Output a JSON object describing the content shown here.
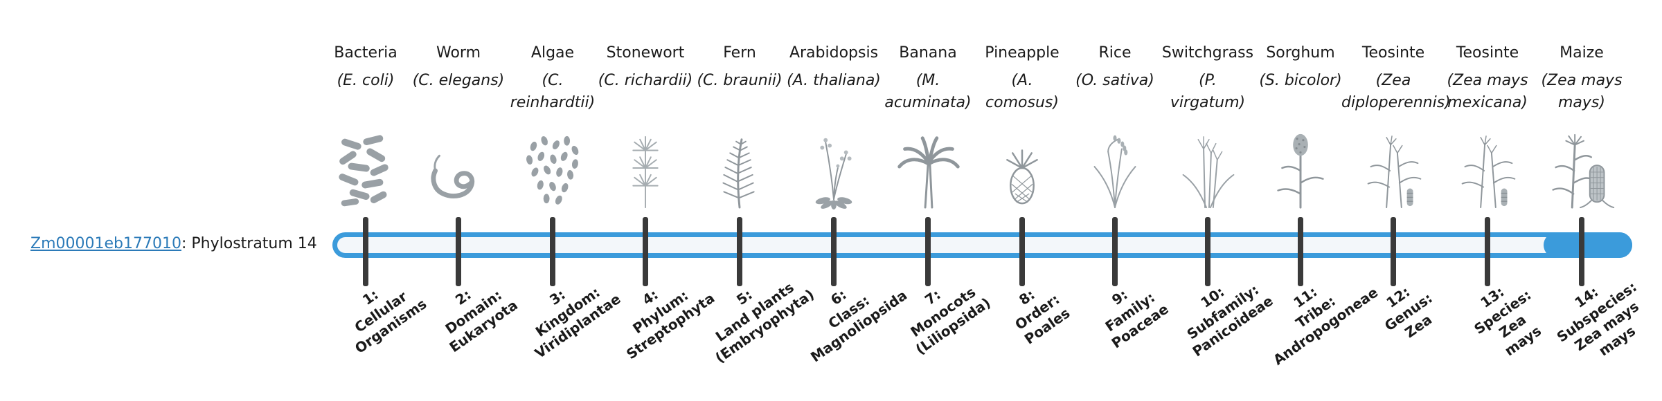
{
  "gene": {
    "id": "Zm00001eb177010",
    "suffix": ": Phylostratum 14"
  },
  "colors": {
    "accent": "#3b9bdb",
    "bar_fill": "#f3f7fa",
    "tick": "#3a3a3a",
    "link": "#2b7ab8",
    "text": "#1a1a1a"
  },
  "highlighted_phylostratum": "14",
  "columns": [
    {
      "common": "Bacteria",
      "sci": [
        "(E. coli)"
      ],
      "icon": "bacteria-icon",
      "stratum": [
        "1:",
        "Cellular",
        "Organisms"
      ]
    },
    {
      "common": "Worm",
      "sci": [
        "(C. elegans)"
      ],
      "icon": "worm-icon",
      "stratum": [
        "2:",
        "Domain:",
        "Eukaryota"
      ]
    },
    {
      "common": "Algae",
      "sci": [
        "(C.",
        "reinhardtii)"
      ],
      "icon": "algae-icon",
      "stratum": [
        "3:",
        "Kingdom:",
        "Viridiplantae"
      ]
    },
    {
      "common": "Stonewort",
      "sci": [
        "(C. richardii)"
      ],
      "icon": "stonewort-icon",
      "stratum": [
        "4:",
        "Phylum:",
        "Streptophyta"
      ]
    },
    {
      "common": "Fern",
      "sci": [
        "(C. braunii)"
      ],
      "icon": "fern-icon",
      "stratum": [
        "5:",
        "Land plants",
        "(Embryophyta)"
      ]
    },
    {
      "common": "Arabidopsis",
      "sci": [
        "(A. thaliana)"
      ],
      "icon": "arabidopsis-icon",
      "stratum": [
        "6:",
        "Class:",
        "Magnoliopsida"
      ]
    },
    {
      "common": "Banana",
      "sci": [
        "(M.",
        "acuminata)"
      ],
      "icon": "banana-icon",
      "stratum": [
        "7:",
        "Monocots",
        "(Liliopsida)"
      ]
    },
    {
      "common": "Pineapple",
      "sci": [
        "(A.",
        "comosus)"
      ],
      "icon": "pineapple-icon",
      "stratum": [
        "8:",
        "Order:",
        "Poales"
      ]
    },
    {
      "common": "Rice",
      "sci": [
        "(O. sativa)"
      ],
      "icon": "rice-icon",
      "stratum": [
        "9:",
        "Family:",
        "Poaceae"
      ]
    },
    {
      "common": "Switchgrass",
      "sci": [
        "(P.",
        "virgatum)"
      ],
      "icon": "switchgrass-icon",
      "stratum": [
        "10:",
        "Subfamily:",
        "Panicoideae"
      ]
    },
    {
      "common": "Sorghum",
      "sci": [
        "(S. bicolor)"
      ],
      "icon": "sorghum-icon",
      "stratum": [
        "11:",
        "Tribe:",
        "Andropogoneae"
      ]
    },
    {
      "common": "Teosinte",
      "sci": [
        "(Zea",
        "diploperennis)"
      ],
      "icon": "teosinte-icon",
      "stratum": [
        "12:",
        "Genus:",
        "Zea"
      ]
    },
    {
      "common": "Teosinte",
      "sci": [
        "(Zea mays",
        "mexicana)"
      ],
      "icon": "teosinte-icon",
      "stratum": [
        "13:",
        "Species:",
        "Zea",
        "mays"
      ]
    },
    {
      "common": "Maize",
      "sci": [
        "(Zea mays",
        "mays)"
      ],
      "icon": "maize-icon",
      "stratum": [
        "14:",
        "Subspecies:",
        "Zea mays",
        "mays"
      ]
    }
  ]
}
